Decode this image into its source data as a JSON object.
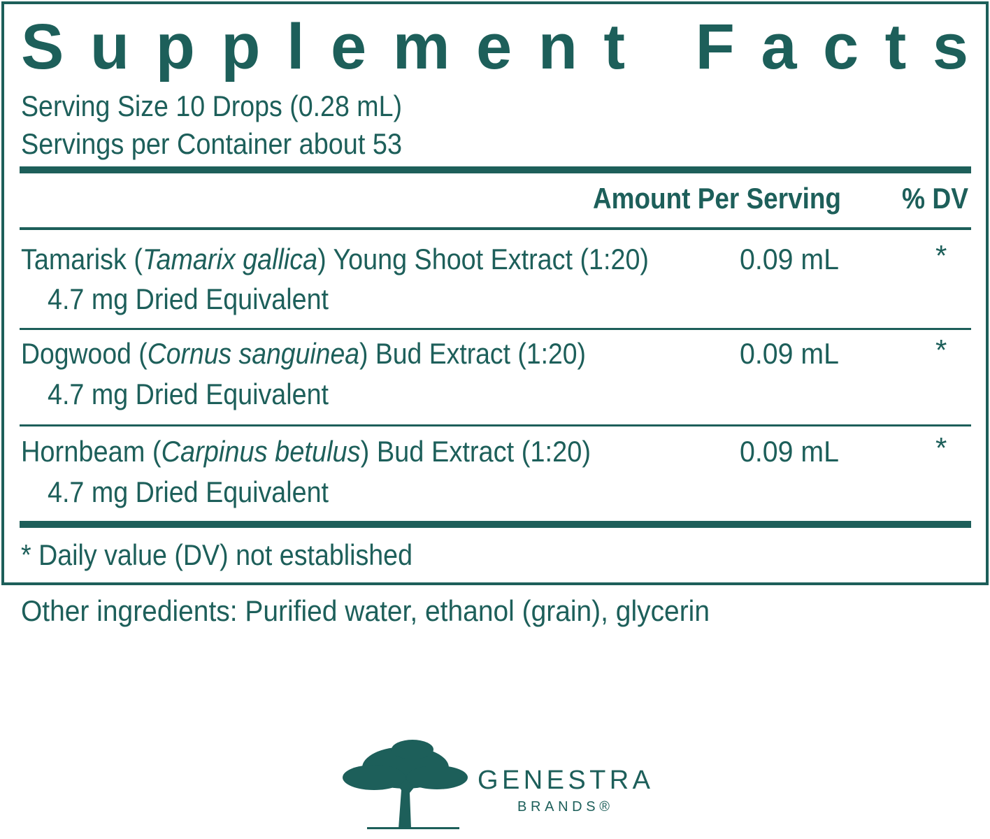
{
  "title": "Supplement Facts",
  "serving_size": "Serving Size 10 Drops (0.28 mL)",
  "servings_per_container": "Servings per Container about 53",
  "header": {
    "amount": "Amount Per Serving",
    "dv": "% DV"
  },
  "rows": [
    {
      "name_before": "Tamarisk (",
      "latin": "Tamarix gallica",
      "name_after": ") Young Shoot Extract (1:20)",
      "sub": "4.7 mg Dried Equivalent",
      "amount": "0.09 mL",
      "dv": "*"
    },
    {
      "name_before": "Dogwood (",
      "latin": "Cornus sanguinea",
      "name_after": ") Bud Extract (1:20)",
      "sub": "4.7 mg Dried Equivalent",
      "amount": "0.09 mL",
      "dv": "*"
    },
    {
      "name_before": "Hornbeam (",
      "latin": "Carpinus betulus",
      "name_after": ") Bud Extract (1:20)",
      "sub": "4.7 mg Dried Equivalent",
      "amount": "0.09 mL",
      "dv": "*"
    }
  ],
  "footnote": "* Daily value (DV) not established",
  "other_ingredients": "Other ingredients: Purified water, ethanol (grain), glycerin",
  "brand": {
    "name": "GENESTRA",
    "sub": "BRANDS®"
  }
}
